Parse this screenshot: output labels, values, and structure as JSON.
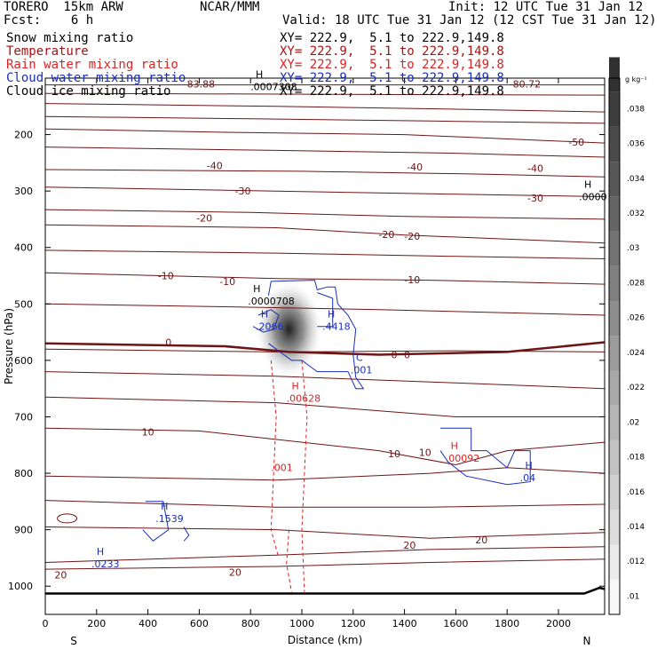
{
  "header": {
    "model": "TORERO  15km ARW",
    "center": "NCAR/MMM",
    "init": "Init: 12 UTC Tue 31 Jan 12",
    "fcst": "Fcst:    6 h",
    "valid": "Valid: 18 UTC Tue 31 Jan 12 (12 CST Tue 31 Jan 12)"
  },
  "fields": [
    {
      "name": "Snow mixing ratio",
      "xy": "XY= 222.9,  5.1 to 222.9,149.8",
      "color": "#000000"
    },
    {
      "name": "Temperature",
      "xy": "XY= 222.9,  5.1 to 222.9,149.8",
      "color": "#aa1111"
    },
    {
      "name": "Rain water mixing ratio",
      "xy": "XY= 222.9,  5.1 to 222.9,149.8",
      "color": "#dd2222"
    },
    {
      "name": "Cloud water mixing ratio",
      "xy": "XY= 222.9,  5.1 to 222.9,149.8",
      "color": "#1a2eb8"
    },
    {
      "name": "Cloud ice mixing ratio",
      "xy": "XY= 222.9,  5.1 to 222.9,149.8",
      "color": "#000000"
    }
  ],
  "chart_data": {
    "type": "cross-section",
    "xlabel": "Distance (km)",
    "ylabel": "Pressure (hPa)",
    "x_ticks": [
      0,
      200,
      400,
      600,
      800,
      1000,
      1200,
      1400,
      1600,
      1800,
      2000
    ],
    "y_ticks": [
      200,
      300,
      400,
      500,
      600,
      700,
      800,
      900,
      1000
    ],
    "xlim": [
      0,
      2180
    ],
    "ylim": [
      100,
      1050
    ],
    "y_scale": "linear, pressure decreasing upward",
    "endpoints": {
      "left": "S",
      "right": "N"
    },
    "colorbar": {
      "unit": "g kg⁻¹",
      "ticks": [
        ".01",
        ".012",
        ".014",
        ".016",
        ".018",
        ".02",
        ".022",
        ".024",
        ".026",
        ".028",
        ".03",
        ".032",
        ".034",
        ".036",
        ".038"
      ]
    },
    "temperature_labels": [
      {
        "text": "-83.88",
        "x": 600,
        "p": 110
      },
      {
        "text": "-80.72",
        "x": 1870,
        "p": 110
      },
      {
        "text": "-50",
        "x": 2070,
        "p": 213
      },
      {
        "text": "-40",
        "x": 660,
        "p": 255
      },
      {
        "text": "-40",
        "x": 1440,
        "p": 257
      },
      {
        "text": "-40",
        "x": 1910,
        "p": 260
      },
      {
        "text": "-30",
        "x": 770,
        "p": 300
      },
      {
        "text": "-30",
        "x": 1910,
        "p": 312
      },
      {
        "text": "-20",
        "x": 620,
        "p": 348
      },
      {
        "text": "-20",
        "x": 1330,
        "p": 377
      },
      {
        "text": "-20",
        "x": 1430,
        "p": 380
      },
      {
        "text": "-10",
        "x": 470,
        "p": 450
      },
      {
        "text": "-10",
        "x": 710,
        "p": 460
      },
      {
        "text": "-10",
        "x": 1430,
        "p": 457
      },
      {
        "text": "0",
        "x": 480,
        "p": 568
      },
      {
        "text": "0",
        "x": 1360,
        "p": 590
      },
      {
        "text": "0",
        "x": 1410,
        "p": 590
      },
      {
        "text": "10",
        "x": 400,
        "p": 727
      },
      {
        "text": "10",
        "x": 1360,
        "p": 765
      },
      {
        "text": "10",
        "x": 1480,
        "p": 763
      },
      {
        "text": "20",
        "x": 1420,
        "p": 927
      },
      {
        "text": "20",
        "x": 1700,
        "p": 918
      },
      {
        "text": "20",
        "x": 740,
        "p": 975
      },
      {
        "text": "20",
        "x": 60,
        "p": 980
      }
    ],
    "extrema_labels": [
      {
        "mark": "H",
        "value": ".0007308",
        "x": 800,
        "p": 115,
        "color": "#000000"
      },
      {
        "mark": "H",
        "value": ".0000708",
        "x": 790,
        "p": 495,
        "color": "#000000"
      },
      {
        "mark": "H",
        "value": ".0000",
        "x": 2080,
        "p": 310,
        "color": "#000000"
      },
      {
        "mark": "H",
        "value": ".2066",
        "x": 820,
        "p": 540,
        "color": "#1a2eb8"
      },
      {
        "mark": "H",
        "value": ".4418",
        "x": 1080,
        "p": 540,
        "color": "#1a2eb8"
      },
      {
        "mark": "C",
        "value": ".001",
        "x": 1190,
        "p": 617,
        "color": "#1a2eb8"
      },
      {
        "mark": "H",
        "value": ".00628",
        "x": 940,
        "p": 667,
        "color": "#dd2222"
      },
      {
        "mark": "",
        "value": ".001",
        "x": 880,
        "p": 790,
        "color": "#dd2222"
      },
      {
        "mark": "H",
        "value": ".00092",
        "x": 1560,
        "p": 773,
        "color": "#dd2222"
      },
      {
        "mark": "H",
        "value": ".04",
        "x": 1850,
        "p": 808,
        "color": "#1a2eb8"
      },
      {
        "mark": "H",
        "value": ".1539",
        "x": 430,
        "p": 880,
        "color": "#1a2eb8"
      },
      {
        "mark": "H",
        "value": ".0233",
        "x": 180,
        "p": 960,
        "color": "#1a2eb8"
      }
    ]
  }
}
